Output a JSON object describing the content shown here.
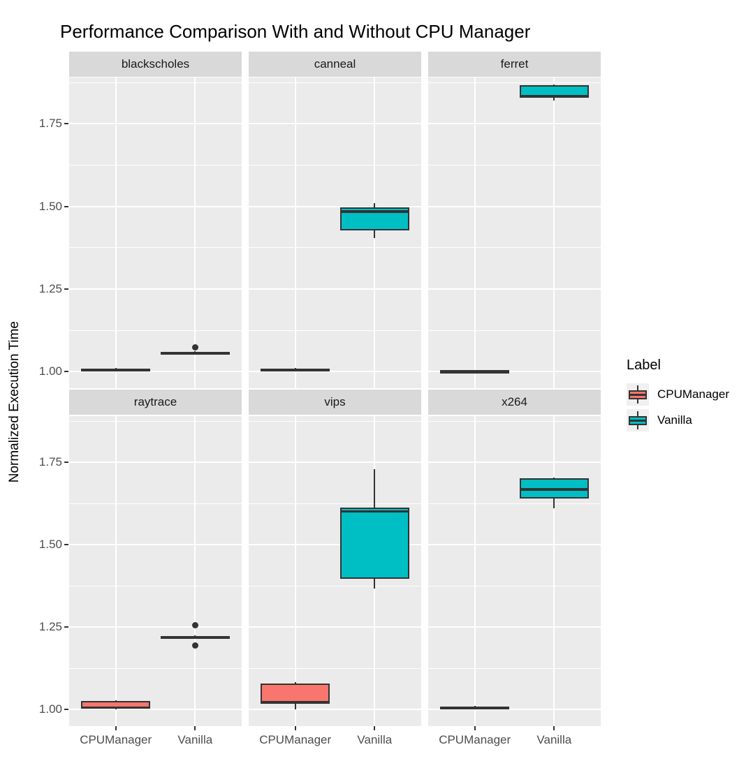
{
  "chart_data": {
    "type": "boxplot",
    "title": "Performance Comparison With and Without CPU Manager",
    "ylabel": "Normalized Execution Time",
    "xlabel": "",
    "x_categories": [
      "CPUManager",
      "Vanilla"
    ],
    "ylim": [
      0.95,
      1.89
    ],
    "yticks": [
      1.0,
      1.25,
      1.5,
      1.75
    ],
    "ytick_labels": [
      "1.00",
      "1.25",
      "1.50",
      "1.75"
    ],
    "minor_gridlines": [
      1.125,
      1.375,
      1.625,
      1.875
    ],
    "grid": "on",
    "legend": {
      "title": "Label",
      "position": "right",
      "entries": [
        {
          "label": "CPUManager",
          "color": "#F8766D"
        },
        {
          "label": "Vanilla",
          "color": "#00BFC4"
        }
      ]
    },
    "colors": {
      "panel_bg": "#EBEBEB",
      "strip_bg": "#D9D9D9",
      "gridline": "#FFFFFF",
      "box_outline": "#333333",
      "axis_text": "#4D4D4D",
      "title_text": "#000000"
    },
    "facets": [
      {
        "label": "blackscholes",
        "boxes": [
          {
            "category": "CPUManager",
            "whisker_low": 1.001,
            "q1": 1.003,
            "median": 1.006,
            "q3": 1.009,
            "whisker_high": 1.011,
            "outliers": []
          },
          {
            "category": "Vanilla",
            "whisker_low": 1.051,
            "q1": 1.053,
            "median": 1.057,
            "q3": 1.06,
            "whisker_high": 1.062,
            "outliers": [
              1.073
            ]
          }
        ]
      },
      {
        "label": "canneal",
        "boxes": [
          {
            "category": "CPUManager",
            "whisker_low": 1.001,
            "q1": 1.003,
            "median": 1.006,
            "q3": 1.01,
            "whisker_high": 1.012,
            "outliers": []
          },
          {
            "category": "Vanilla",
            "whisker_low": 1.405,
            "q1": 1.428,
            "median": 1.484,
            "q3": 1.497,
            "whisker_high": 1.51,
            "outliers": []
          }
        ]
      },
      {
        "label": "ferret",
        "boxes": [
          {
            "category": "CPUManager",
            "whisker_low": 0.998,
            "q1": 0.999,
            "median": 1.001,
            "q3": 1.003,
            "whisker_high": 1.004,
            "outliers": []
          },
          {
            "category": "Vanilla",
            "whisker_low": 1.82,
            "q1": 1.828,
            "median": 1.834,
            "q3": 1.866,
            "whisker_high": 1.868,
            "outliers": []
          }
        ]
      },
      {
        "label": "raytrace",
        "boxes": [
          {
            "category": "CPUManager",
            "whisker_low": 1.0,
            "q1": 1.002,
            "median": 1.006,
            "q3": 1.026,
            "whisker_high": 1.029,
            "outliers": []
          },
          {
            "category": "Vanilla",
            "whisker_low": 1.215,
            "q1": 1.217,
            "median": 1.22,
            "q3": 1.223,
            "whisker_high": 1.225,
            "outliers": [
              1.256,
              1.194
            ]
          }
        ]
      },
      {
        "label": "vips",
        "boxes": [
          {
            "category": "CPUManager",
            "whisker_low": 1.0,
            "q1": 1.017,
            "median": 1.022,
            "q3": 1.079,
            "whisker_high": 1.083,
            "outliers": []
          },
          {
            "category": "Vanilla",
            "whisker_low": 1.368,
            "q1": 1.397,
            "median": 1.601,
            "q3": 1.612,
            "whisker_high": 1.729,
            "outliers": []
          }
        ]
      },
      {
        "label": "x264",
        "boxes": [
          {
            "category": "CPUManager",
            "whisker_low": 1.001,
            "q1": 1.003,
            "median": 1.006,
            "q3": 1.009,
            "whisker_high": 1.011,
            "outliers": []
          },
          {
            "category": "Vanilla",
            "whisker_low": 1.611,
            "q1": 1.641,
            "median": 1.668,
            "q3": 1.702,
            "whisker_high": 1.704,
            "outliers": []
          }
        ]
      }
    ]
  }
}
